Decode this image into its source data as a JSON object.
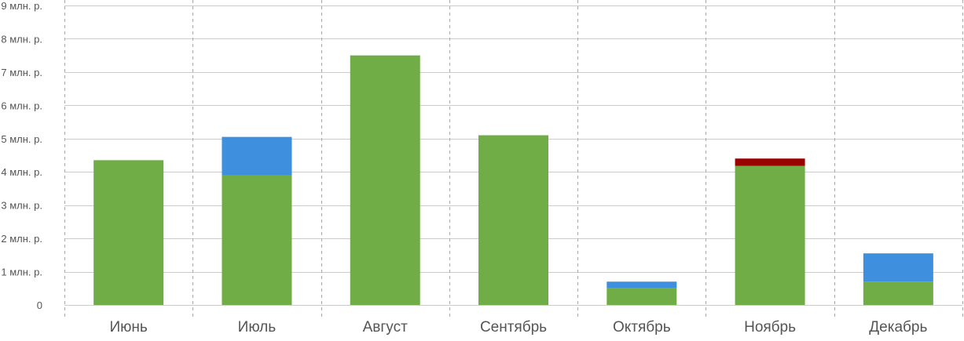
{
  "chart_data": {
    "type": "bar",
    "stacked": true,
    "categories": [
      "Июнь",
      "Июль",
      "Август",
      "Сентябрь",
      "Октябрь",
      "Ноябрь",
      "Декабрь"
    ],
    "series": [
      {
        "color": "#70ad47",
        "values": [
          4.35,
          3.9,
          7.5,
          5.1,
          0.5,
          4.18,
          0.7
        ]
      },
      {
        "color": "#3f8fdf",
        "values": [
          0,
          1.15,
          0,
          0,
          0.2,
          0,
          0.85
        ]
      },
      {
        "color": "#990000",
        "values": [
          0,
          0,
          0,
          0,
          0,
          0.22,
          0
        ]
      }
    ],
    "ylim": [
      0,
      9
    ],
    "yticks": [
      0,
      1,
      2,
      3,
      4,
      5,
      6,
      7,
      8,
      9
    ],
    "ytick_labels": [
      "0",
      "1 млн. р.",
      "2 млн. р.",
      "3 млн. р.",
      "4 млн. р.",
      "5 млн. р.",
      "6 млн. р.",
      "7 млн. р.",
      "8 млн. р.",
      "9 млн. р."
    ],
    "grid": true,
    "legend": false,
    "gridline_color": "#cccccc",
    "separator_color": "#aaaaaa"
  }
}
